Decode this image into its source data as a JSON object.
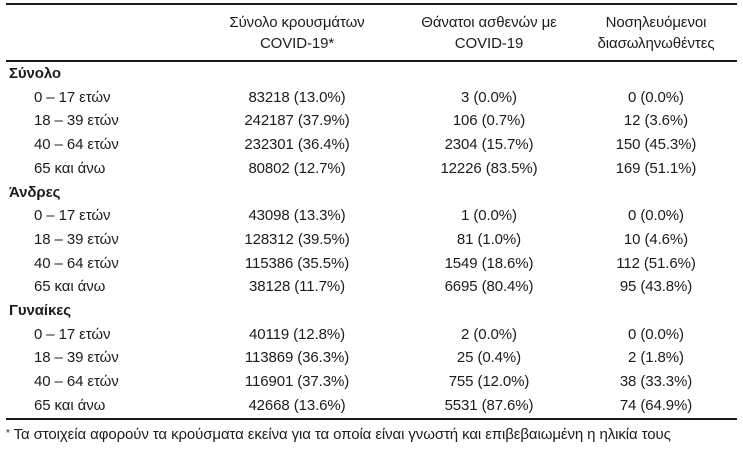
{
  "table": {
    "columns": [
      {
        "line1": "Σύνολο κρουσμάτων",
        "line2": "COVID-19*"
      },
      {
        "line1": "Θάνατοι ασθενών με",
        "line2": "COVID-19"
      },
      {
        "line1": "Νοσηλευόμενοι",
        "line2": "διασωληνωθέντες"
      }
    ],
    "sections": [
      {
        "title": "Σύνολο",
        "rows": [
          {
            "label": "0 – 17 ετών",
            "cases": "83218 (13.0%)",
            "deaths": "3 (0.0%)",
            "intubated": "0 (0.0%)"
          },
          {
            "label": "18 – 39 ετών",
            "cases": "242187 (37.9%)",
            "deaths": "106 (0.7%)",
            "intubated": "12 (3.6%)"
          },
          {
            "label": "40 – 64 ετών",
            "cases": "232301 (36.4%)",
            "deaths": "2304 (15.7%)",
            "intubated": "150 (45.3%)"
          },
          {
            "label": "65 και άνω",
            "cases": "80802 (12.7%)",
            "deaths": "12226 (83.5%)",
            "intubated": "169 (51.1%)"
          }
        ]
      },
      {
        "title": "Άνδρες",
        "rows": [
          {
            "label": "0 – 17 ετών",
            "cases": "43098 (13.3%)",
            "deaths": "1 (0.0%)",
            "intubated": "0 (0.0%)"
          },
          {
            "label": "18 – 39 ετών",
            "cases": "128312 (39.5%)",
            "deaths": "81 (1.0%)",
            "intubated": "10 (4.6%)"
          },
          {
            "label": "40 – 64 ετών",
            "cases": "115386 (35.5%)",
            "deaths": "1549 (18.6%)",
            "intubated": "112 (51.6%)"
          },
          {
            "label": "65 και άνω",
            "cases": "38128 (11.7%)",
            "deaths": "6695 (80.4%)",
            "intubated": "95 (43.8%)"
          }
        ]
      },
      {
        "title": "Γυναίκες",
        "rows": [
          {
            "label": "0 – 17 ετών",
            "cases": "40119 (12.8%)",
            "deaths": "2 (0.0%)",
            "intubated": "0 (0.0%)"
          },
          {
            "label": "18 – 39 ετών",
            "cases": "113869 (36.3%)",
            "deaths": "25 (0.4%)",
            "intubated": "2 (1.8%)"
          },
          {
            "label": "40 – 64 ετών",
            "cases": "116901 (37.3%)",
            "deaths": "755 (12.0%)",
            "intubated": "38 (33.3%)"
          },
          {
            "label": "65 και άνω",
            "cases": "42668 (13.6%)",
            "deaths": "5531 (87.6%)",
            "intubated": "74 (64.9%)"
          }
        ]
      }
    ]
  },
  "footnote": {
    "marker": "*",
    "text": " Τα στοιχεία αφορούν τα κρούσματα εκείνα για τα οποία είναι γνωστή και επιβεβαιωμένη η ηλικία τους"
  },
  "colors": {
    "text": "#1c1c1c",
    "rule": "#1a1a1a",
    "background": "#ffffff"
  }
}
